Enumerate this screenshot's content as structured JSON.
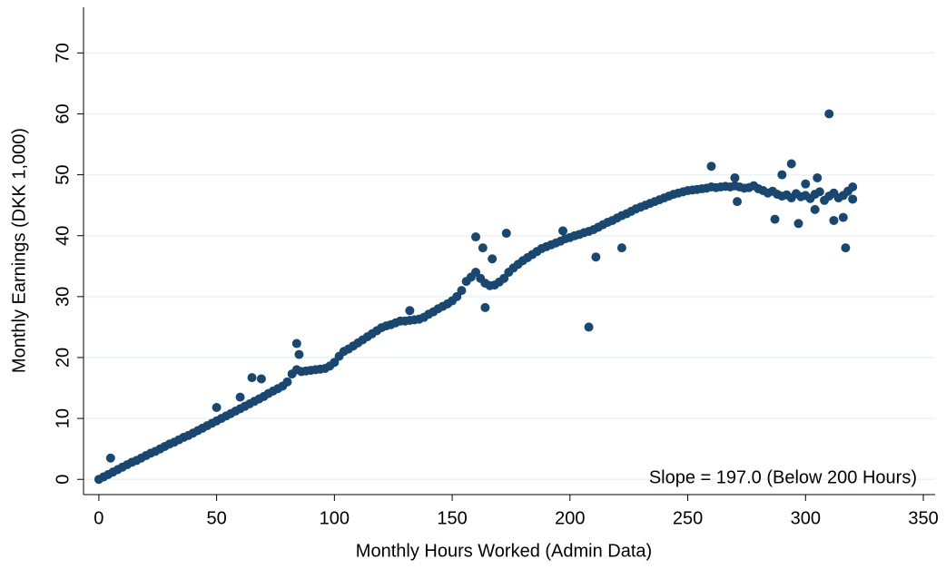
{
  "chart_data": {
    "type": "scatter",
    "x_label": "Monthly Hours Worked (Admin Data)",
    "y_label": "Monthly Earnings (DKK 1,000)",
    "annotation": "Slope = 197.0 (Below 200 Hours)",
    "color": "#1a476f",
    "grid": true,
    "xlim": [
      -6.5,
      355
    ],
    "ylim": [
      -2.5,
      77.5
    ],
    "xticks": [
      0,
      50,
      100,
      150,
      200,
      250,
      300,
      350
    ],
    "yticks": [
      0,
      10,
      20,
      30,
      40,
      50,
      60,
      70
    ],
    "x": [
      0,
      2,
      4,
      6,
      8,
      10,
      12,
      14,
      16,
      18,
      20,
      22,
      24,
      26,
      28,
      30,
      32,
      34,
      36,
      38,
      40,
      42,
      44,
      46,
      48,
      50,
      52,
      54,
      56,
      58,
      60,
      62,
      64,
      66,
      68,
      70,
      72,
      74,
      76,
      78,
      80,
      82,
      84,
      86,
      88,
      90,
      92,
      94,
      96,
      98,
      100,
      102,
      104,
      106,
      108,
      110,
      112,
      114,
      116,
      118,
      120,
      122,
      124,
      126,
      128,
      130,
      132,
      134,
      136,
      138,
      140,
      142,
      144,
      146,
      148,
      150,
      152,
      154,
      156,
      158,
      160,
      162,
      164,
      166,
      168,
      170,
      172,
      174,
      176,
      178,
      180,
      182,
      184,
      186,
      188,
      190,
      192,
      194,
      196,
      198,
      200,
      202,
      204,
      206,
      208,
      210,
      212,
      214,
      216,
      218,
      220,
      222,
      224,
      226,
      228,
      230,
      232,
      234,
      236,
      238,
      240,
      242,
      244,
      246,
      248,
      250,
      252,
      254,
      256,
      258,
      260,
      262,
      264,
      266,
      268,
      270,
      272,
      274,
      276,
      278,
      280,
      282,
      284,
      286,
      288,
      290,
      292,
      294,
      296,
      298,
      300,
      302,
      304,
      306,
      308,
      310,
      312,
      314,
      316,
      318,
      320,
      5,
      50,
      60,
      65,
      69,
      84,
      85,
      132,
      160,
      163,
      173,
      167,
      164,
      208,
      211,
      222,
      197,
      260,
      294,
      310,
      317,
      287,
      297,
      312,
      316,
      300,
      305,
      290,
      270,
      271,
      304,
      320
    ],
    "values": [
      0,
      0.4,
      0.8,
      1.2,
      1.6,
      2,
      2.4,
      2.8,
      3.1,
      3.5,
      3.9,
      4.3,
      4.6,
      5,
      5.4,
      5.8,
      6.1,
      6.5,
      6.9,
      7.2,
      7.6,
      8,
      8.4,
      8.8,
      9.2,
      9.6,
      10,
      10.4,
      10.8,
      11.2,
      11.6,
      12,
      12.4,
      12.8,
      13.2,
      13.6,
      14.1,
      14.5,
      14.9,
      15.3,
      16,
      17.3,
      18,
      17.7,
      17.8,
      17.9,
      18,
      18.1,
      18.2,
      18.6,
      19.2,
      20.2,
      21,
      21.4,
      21.9,
      22.4,
      22.9,
      23.4,
      23.9,
      24.4,
      24.9,
      25.2,
      25.4,
      25.7,
      26,
      26,
      26.1,
      26.2,
      26.3,
      26.6,
      27.1,
      27.5,
      28,
      28.4,
      28.8,
      29.3,
      30,
      31,
      32.5,
      33.2,
      34,
      33,
      32.2,
      31.8,
      31.9,
      32.4,
      33,
      34,
      34.7,
      35.3,
      35.9,
      36.4,
      36.9,
      37.4,
      37.9,
      38.2,
      38.5,
      38.8,
      39.1,
      39.5,
      39.7,
      40,
      40.2,
      40.5,
      40.7,
      41,
      41.4,
      41.8,
      42.2,
      42.5,
      42.9,
      43.3,
      43.6,
      44,
      44.4,
      44.7,
      45,
      45.3,
      45.6,
      45.9,
      46.2,
      46.5,
      46.8,
      47,
      47.2,
      47.4,
      47.5,
      47.6,
      47.7,
      47.8,
      48,
      47.9,
      48,
      48.1,
      48,
      48.2,
      48,
      47.8,
      47.9,
      48.2,
      47.7,
      47.4,
      47,
      47.3,
      46.8,
      46.5,
      46.7,
      46.2,
      46.9,
      46.4,
      46.6,
      46.1,
      46.8,
      47.2,
      45.8,
      46.5,
      47,
      46.2,
      46.6,
      47.3,
      46,
      3.5,
      11.8,
      13.5,
      16.7,
      16.5,
      22.3,
      20.5,
      27.7,
      39.8,
      38,
      40.4,
      36.2,
      28.2,
      25,
      36.5,
      38,
      40.8,
      51.4,
      51.8,
      60,
      38,
      42.7,
      42,
      42.5,
      43,
      48.5,
      49.5,
      50,
      49.5,
      45.6,
      44.3,
      48
    ]
  }
}
